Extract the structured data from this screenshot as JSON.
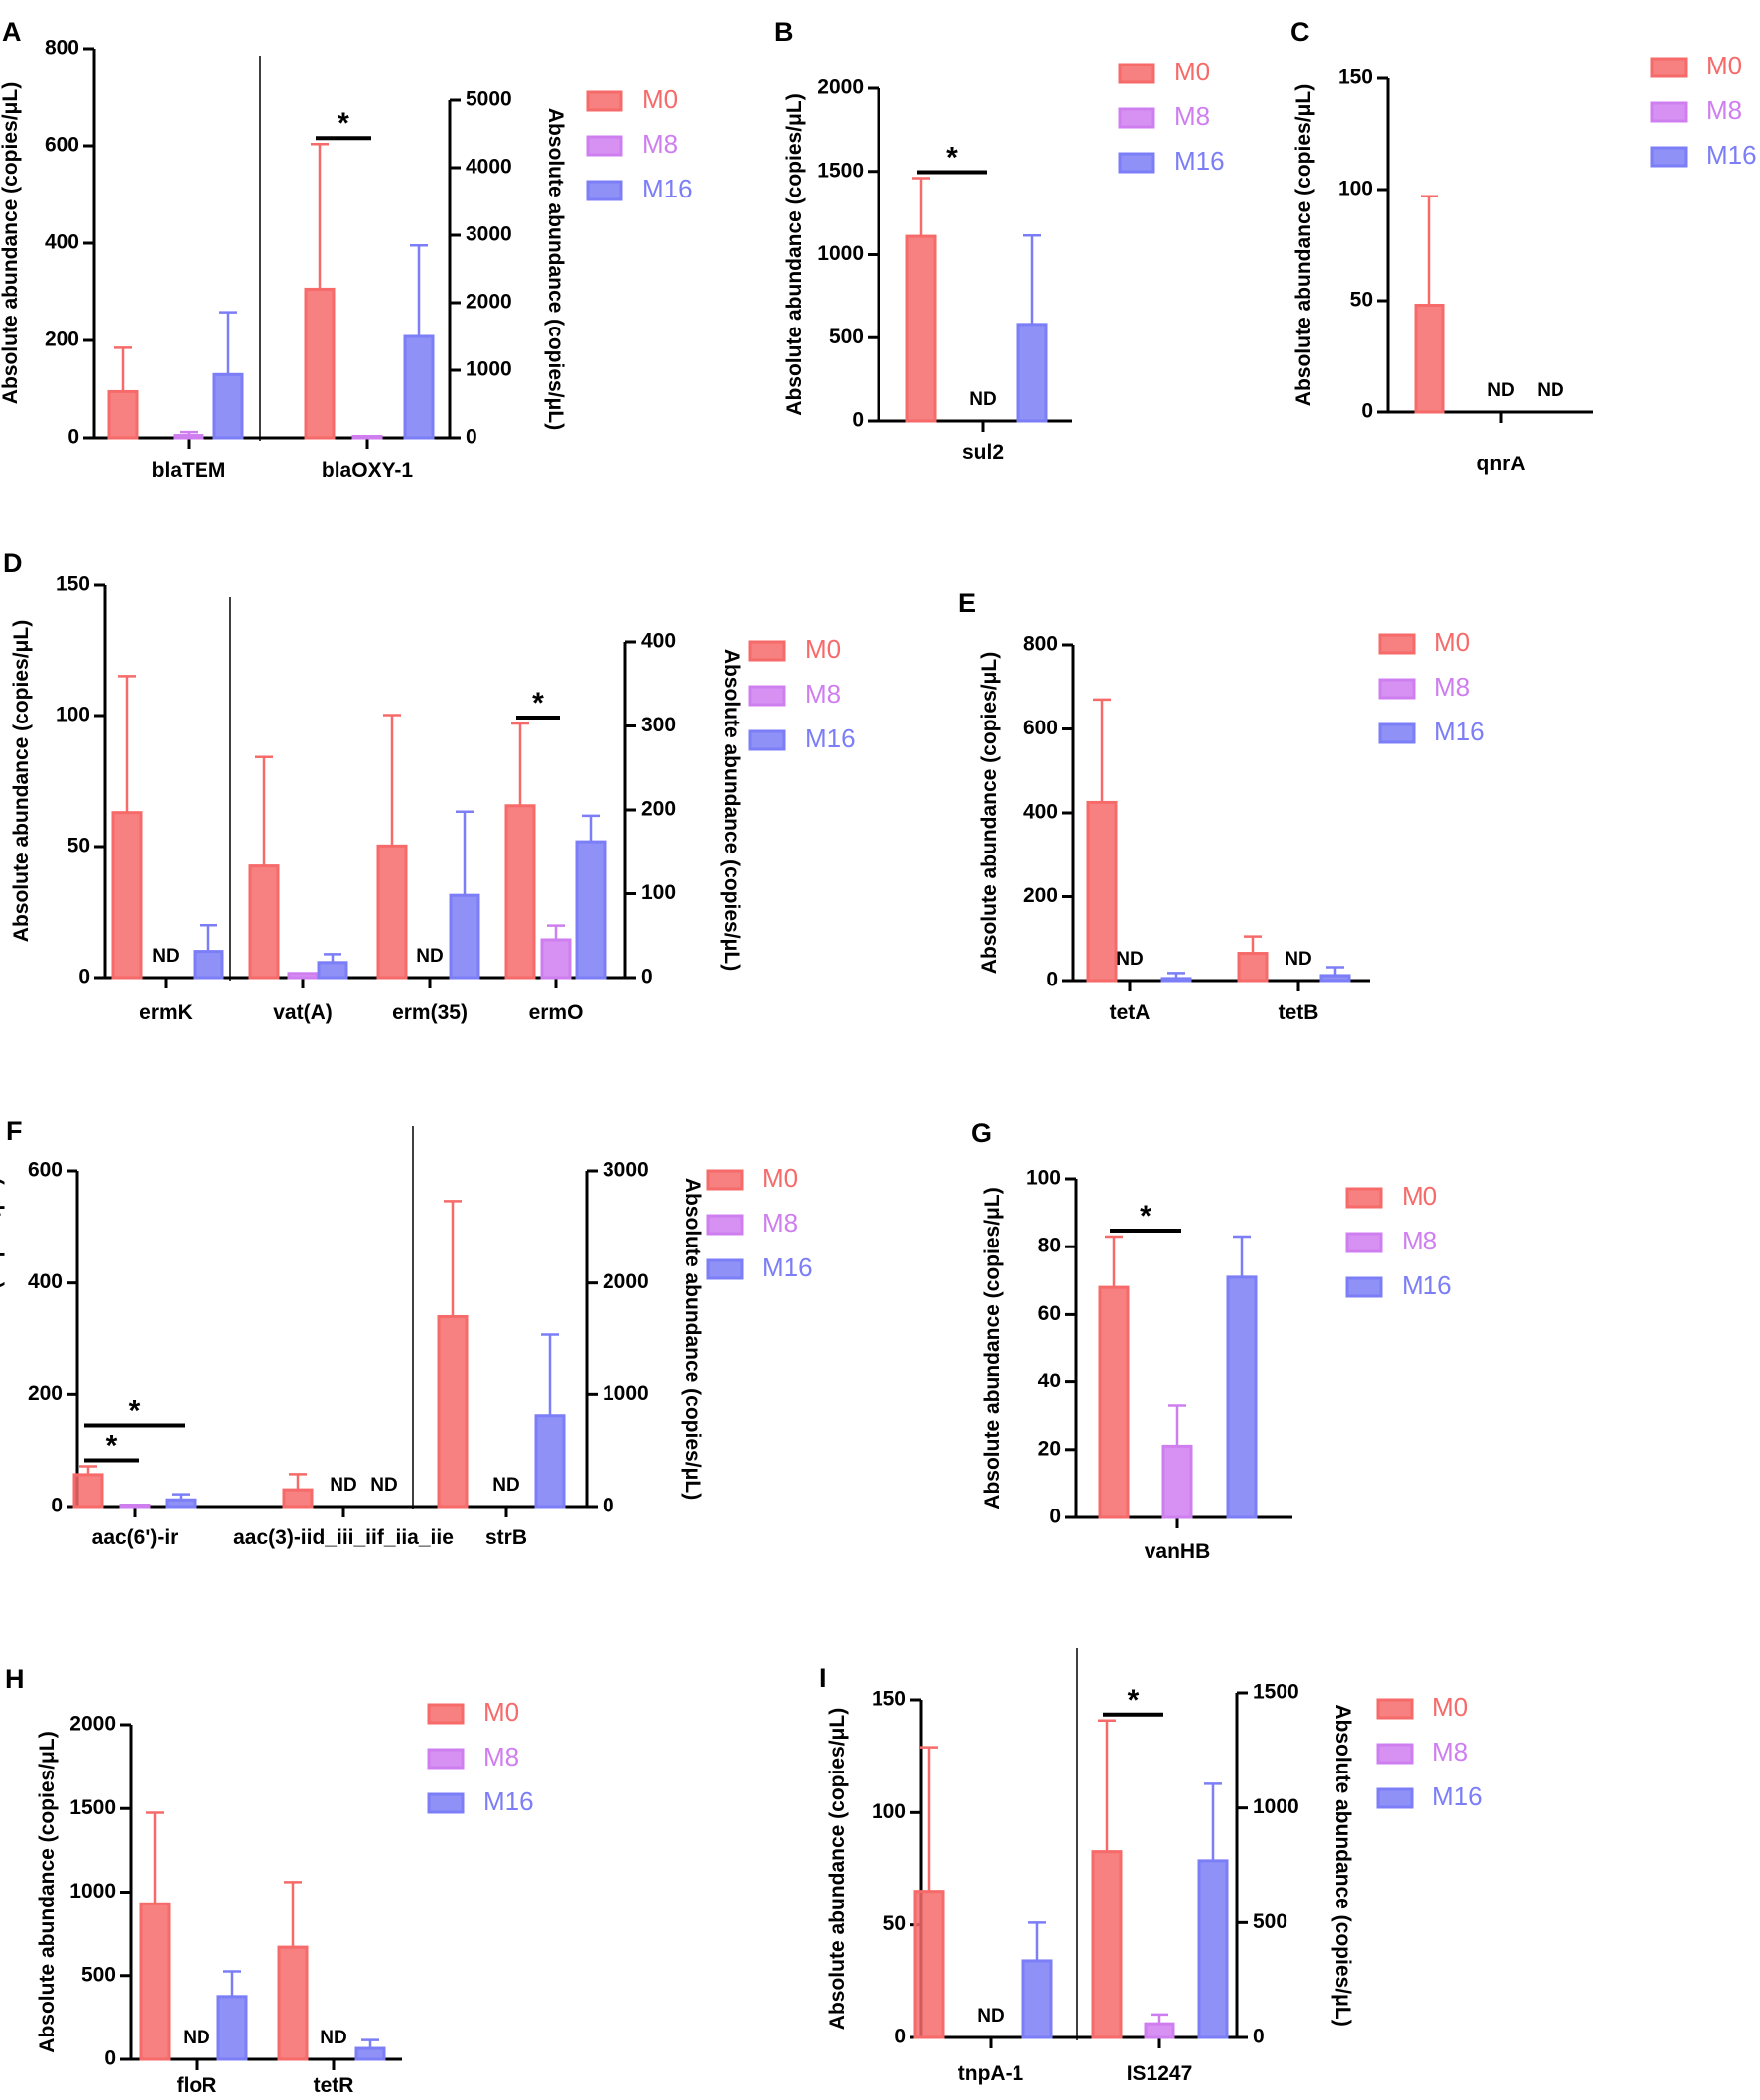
{
  "colors": {
    "M0": "#f66a6a",
    "M8": "#cf7ef0",
    "M16": "#7b7ef6",
    "ink": "#000000"
  },
  "legend": [
    "M0",
    "M8",
    "M16"
  ],
  "nd_label": "ND",
  "star_label": "*",
  "chart_data": [
    {
      "panel": "A",
      "type": "bar",
      "ylabel": "Absolute abundance (copies/μL)",
      "segments": [
        {
          "axis": "left",
          "ylim": [
            0,
            800
          ],
          "ticks": [
            0,
            200,
            400,
            600,
            800
          ],
          "categories": [
            "blaTEM"
          ],
          "series": [
            {
              "name": "M0",
              "values": [
                95
              ],
              "errors": [
                185
              ]
            },
            {
              "name": "M8",
              "values": [
                5
              ],
              "errors": [
                12
              ]
            },
            {
              "name": "M16",
              "values": [
                130
              ],
              "errors": [
                258
              ]
            }
          ]
        },
        {
          "axis": "right",
          "ylim": [
            0,
            5000
          ],
          "ticks": [
            0,
            1000,
            2000,
            3000,
            4000,
            5000
          ],
          "ylabel": "Absolute abundance (copies/μL)",
          "categories": [
            "blaOXY-1"
          ],
          "series": [
            {
              "name": "M0",
              "values": [
                2200
              ],
              "errors": [
                4350
              ]
            },
            {
              "name": "M8",
              "values": [
                15
              ],
              "errors": [
                20
              ]
            },
            {
              "name": "M16",
              "values": [
                1500
              ],
              "errors": [
                2850
              ]
            }
          ]
        }
      ],
      "significance": [
        {
          "category": "blaOXY-1",
          "from": "M0",
          "to": "M8",
          "label": "*"
        }
      ]
    },
    {
      "panel": "B",
      "type": "bar",
      "ylabel": "Absolute abundance (copies/μL)",
      "segments": [
        {
          "axis": "left",
          "ylim": [
            0,
            2000
          ],
          "ticks": [
            0,
            500,
            1000,
            1500,
            2000
          ],
          "categories": [
            "sul2"
          ],
          "series": [
            {
              "name": "M0",
              "values": [
                1110
              ],
              "errors": [
                1460
              ]
            },
            {
              "name": "M8",
              "values": [
                null
              ],
              "nd": [
                true
              ]
            },
            {
              "name": "M16",
              "values": [
                580
              ],
              "errors": [
                1115
              ]
            }
          ]
        }
      ],
      "significance": [
        {
          "category": "sul2",
          "from": "M0",
          "to": "M8",
          "label": "*"
        }
      ]
    },
    {
      "panel": "C",
      "type": "bar",
      "ylabel": "Absolute abundance (copies/μL)",
      "segments": [
        {
          "axis": "left",
          "ylim": [
            0,
            150
          ],
          "ticks": [
            0,
            50,
            100,
            150
          ],
          "categories": [
            "qnrA"
          ],
          "series": [
            {
              "name": "M0",
              "values": [
                48
              ],
              "errors": [
                97
              ]
            },
            {
              "name": "M8",
              "values": [
                null
              ],
              "nd": [
                true
              ]
            },
            {
              "name": "M16",
              "values": [
                null
              ],
              "nd": [
                true
              ]
            }
          ]
        }
      ],
      "significance": []
    },
    {
      "panel": "D",
      "type": "bar",
      "ylabel": "Absolute abundance (copies/μL)",
      "segments": [
        {
          "axis": "left",
          "ylim": [
            0,
            150
          ],
          "ticks": [
            0,
            50,
            100,
            150
          ],
          "categories": [
            "ermK"
          ],
          "series": [
            {
              "name": "M0",
              "values": [
                63
              ],
              "errors": [
                115
              ]
            },
            {
              "name": "M8",
              "values": [
                null
              ],
              "nd": [
                true
              ]
            },
            {
              "name": "M16",
              "values": [
                10
              ],
              "errors": [
                20
              ]
            }
          ]
        },
        {
          "axis": "right",
          "ylim": [
            0,
            400
          ],
          "ticks": [
            0,
            100,
            200,
            300,
            400
          ],
          "ylabel": "Absolute abundance (copies/μL)",
          "categories": [
            "vat(A)",
            "erm(35)",
            "ermO"
          ],
          "series": [
            {
              "name": "M0",
              "values": [
                133,
                157,
                205
              ],
              "errors": [
                263,
                313,
                303
              ]
            },
            {
              "name": "M8",
              "values": [
                5,
                null,
                45
              ],
              "nd": [
                false,
                true,
                false
              ],
              "errors": [
                5,
                null,
                62
              ]
            },
            {
              "name": "M16",
              "values": [
                18,
                98,
                162
              ],
              "errors": [
                28,
                198,
                193
              ]
            }
          ]
        }
      ],
      "significance": [
        {
          "category": "ermO",
          "from": "M0",
          "to": "M8",
          "label": "*"
        }
      ]
    },
    {
      "panel": "E",
      "type": "bar",
      "ylabel": "Absolute abundance (copies/μL)",
      "segments": [
        {
          "axis": "left",
          "ylim": [
            0,
            800
          ],
          "ticks": [
            0,
            200,
            400,
            600,
            800
          ],
          "categories": [
            "tetA",
            "tetB"
          ],
          "series": [
            {
              "name": "M0",
              "values": [
                425,
                65
              ],
              "errors": [
                670,
                105
              ]
            },
            {
              "name": "M8",
              "values": [
                null,
                null
              ],
              "nd": [
                true,
                true
              ]
            },
            {
              "name": "M16",
              "values": [
                5,
                12
              ],
              "errors": [
                18,
                32
              ]
            }
          ]
        }
      ],
      "significance": []
    },
    {
      "panel": "F",
      "type": "bar",
      "ylabel": "Absolute abundance (copies/μL)",
      "segments": [
        {
          "axis": "left",
          "ylim": [
            0,
            600
          ],
          "ticks": [
            0,
            200,
            400,
            600
          ],
          "categories": [
            "aac(6')-ir",
            "aac(3)-iid_iii_iif_iia_iie"
          ],
          "series": [
            {
              "name": "M0",
              "values": [
                57,
                30
              ],
              "errors": [
                72,
                58
              ]
            },
            {
              "name": "M8",
              "values": [
                2,
                null
              ],
              "nd": [
                false,
                true
              ],
              "errors": [
                3,
                null
              ]
            },
            {
              "name": "M16",
              "values": [
                12,
                null
              ],
              "nd": [
                false,
                true
              ],
              "errors": [
                22,
                null
              ]
            }
          ]
        },
        {
          "axis": "right",
          "ylim": [
            0,
            3000
          ],
          "ticks": [
            0,
            1000,
            2000,
            3000
          ],
          "ylabel": "Absolute abundance (copies/μL)",
          "categories": [
            "strB"
          ],
          "series": [
            {
              "name": "M0",
              "values": [
                1700
              ],
              "errors": [
                2730
              ]
            },
            {
              "name": "M8",
              "values": [
                null
              ],
              "nd": [
                true
              ]
            },
            {
              "name": "M16",
              "values": [
                810
              ],
              "errors": [
                1540
              ]
            }
          ]
        }
      ],
      "significance": [
        {
          "category": "aac(6')-ir",
          "from": "M0",
          "to": "M8",
          "label": "*"
        },
        {
          "category": "aac(6')-ir",
          "from": "M0",
          "to": "M16",
          "label": "*"
        }
      ]
    },
    {
      "panel": "G",
      "type": "bar",
      "ylabel": "Absolute abundance (copies/μL)",
      "segments": [
        {
          "axis": "left",
          "ylim": [
            0,
            100
          ],
          "ticks": [
            0,
            20,
            40,
            60,
            80,
            100
          ],
          "categories": [
            "vanHB"
          ],
          "series": [
            {
              "name": "M0",
              "values": [
                68
              ],
              "errors": [
                83
              ]
            },
            {
              "name": "M8",
              "values": [
                21
              ],
              "errors": [
                33
              ]
            },
            {
              "name": "M16",
              "values": [
                71
              ],
              "errors": [
                83
              ]
            }
          ]
        }
      ],
      "significance": [
        {
          "category": "vanHB",
          "from": "M0",
          "to": "M8",
          "label": "*"
        }
      ]
    },
    {
      "panel": "H",
      "type": "bar",
      "ylabel": "Absolute abundance (copies/μL)",
      "segments": [
        {
          "axis": "left",
          "ylim": [
            0,
            2000
          ],
          "ticks": [
            0,
            500,
            1000,
            1500,
            2000
          ],
          "categories": [
            "floR",
            "tetR"
          ],
          "series": [
            {
              "name": "M0",
              "values": [
                930,
                670
              ],
              "errors": [
                1475,
                1060
              ]
            },
            {
              "name": "M8",
              "values": [
                null,
                null
              ],
              "nd": [
                true,
                true
              ]
            },
            {
              "name": "M16",
              "values": [
                375,
                65
              ],
              "errors": [
                525,
                115
              ]
            }
          ]
        }
      ],
      "significance": []
    },
    {
      "panel": "I",
      "type": "bar",
      "ylabel": "Absolute abundance (copies/μL)",
      "segments": [
        {
          "axis": "left",
          "ylim": [
            0,
            150
          ],
          "ticks": [
            0,
            50,
            100,
            150
          ],
          "categories": [
            "tnpA-1"
          ],
          "series": [
            {
              "name": "M0",
              "values": [
                65
              ],
              "errors": [
                129
              ]
            },
            {
              "name": "M8",
              "values": [
                null
              ],
              "nd": [
                true
              ]
            },
            {
              "name": "M16",
              "values": [
                34
              ],
              "errors": [
                51
              ]
            }
          ]
        },
        {
          "axis": "right",
          "ylim": [
            0,
            1500
          ],
          "ticks": [
            0,
            500,
            1000,
            1500
          ],
          "ylabel": "Absolute abundance (copies/μL)",
          "categories": [
            "IS1247"
          ],
          "series": [
            {
              "name": "M0",
              "values": [
                810
              ],
              "errors": [
                1380
              ]
            },
            {
              "name": "M8",
              "values": [
                60
              ],
              "errors": [
                100
              ]
            },
            {
              "name": "M16",
              "values": [
                770
              ],
              "errors": [
                1105
              ]
            }
          ]
        }
      ],
      "significance": [
        {
          "category": "IS1247",
          "from": "M0",
          "to": "M8",
          "label": "*"
        }
      ]
    }
  ]
}
